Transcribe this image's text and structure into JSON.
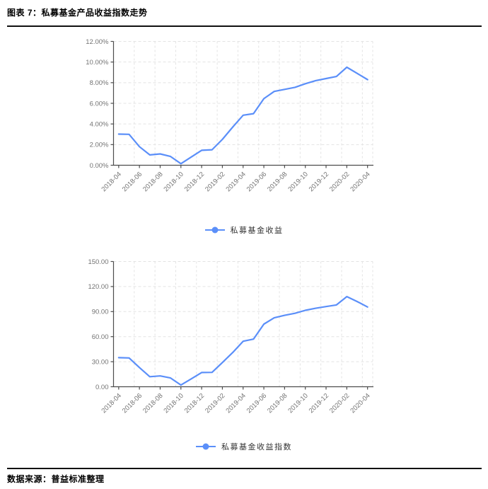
{
  "header": {
    "title": "图表 7：私募基金产品收益指数走势"
  },
  "footer": {
    "source": "数据来源：普益标准整理"
  },
  "colors": {
    "line": "#5b8ff9",
    "axis": "#4d4d4d",
    "grid": "#e3e3e3",
    "tick_label": "#737373",
    "legend_text": "#333333"
  },
  "chart_data": [
    {
      "type": "line",
      "legend": "私募基金收益",
      "x": [
        "2018-04",
        "2018-05",
        "2018-06",
        "2018-07",
        "2018-08",
        "2018-09",
        "2018-10",
        "2018-11",
        "2018-12",
        "2019-01",
        "2019-02",
        "2019-03",
        "2019-04",
        "2019-05",
        "2019-06",
        "2019-07",
        "2019-08",
        "2019-09",
        "2019-10",
        "2019-11",
        "2019-12",
        "2020-01",
        "2020-02",
        "2020-03",
        "2020-04"
      ],
      "values": [
        3.02,
        3.0,
        1.8,
        1.0,
        1.1,
        0.85,
        0.15,
        0.8,
        1.45,
        1.5,
        2.5,
        3.7,
        4.85,
        5.0,
        6.45,
        7.15,
        7.35,
        7.55,
        7.9,
        8.2,
        8.4,
        8.6,
        9.5,
        8.9,
        8.3
      ],
      "ylim": [
        0,
        12
      ],
      "ytick_step": 2,
      "ytick_labels": [
        "0.00%",
        "2.00%",
        "4.00%",
        "6.00%",
        "8.00%",
        "10.00%",
        "12.00%"
      ],
      "xtick_every": 2,
      "xtick_labels": [
        "2018-04",
        "2018-06",
        "2018-08",
        "2018-10",
        "2018-12",
        "2019-02",
        "2019-04",
        "2019-06",
        "2019-08",
        "2019-10",
        "2019-12",
        "2020-02",
        "2020-04"
      ],
      "grid": true,
      "legend_position": "bottom"
    },
    {
      "type": "line",
      "legend": "私募基金收益指数",
      "x": [
        "2018-04",
        "2018-05",
        "2018-06",
        "2018-07",
        "2018-08",
        "2018-09",
        "2018-10",
        "2018-11",
        "2018-12",
        "2019-01",
        "2019-02",
        "2019-03",
        "2019-04",
        "2019-05",
        "2019-06",
        "2019-07",
        "2019-08",
        "2019-09",
        "2019-10",
        "2019-11",
        "2019-12",
        "2020-01",
        "2020-02",
        "2020-03",
        "2020-04"
      ],
      "values": [
        34.8,
        34.5,
        23.0,
        12.0,
        13.0,
        10.5,
        2.0,
        9.5,
        17.0,
        17.2,
        29.0,
        41.0,
        54.5,
        57.0,
        75.0,
        82.5,
        85.5,
        88.0,
        91.5,
        94.0,
        96.0,
        98.0,
        108.0,
        102.0,
        95.5
      ],
      "ylim": [
        0,
        150
      ],
      "ytick_step": 30,
      "ytick_labels": [
        "0.00",
        "30.00",
        "60.00",
        "90.00",
        "120.00",
        "150.00"
      ],
      "xtick_every": 2,
      "xtick_labels": [
        "2018-04",
        "2018-06",
        "2018-08",
        "2018-10",
        "2018-12",
        "2019-02",
        "2019-04",
        "2019-06",
        "2019-08",
        "2019-10",
        "2019-12",
        "2020-02",
        "2020-04"
      ],
      "grid": true,
      "legend_position": "bottom"
    }
  ]
}
